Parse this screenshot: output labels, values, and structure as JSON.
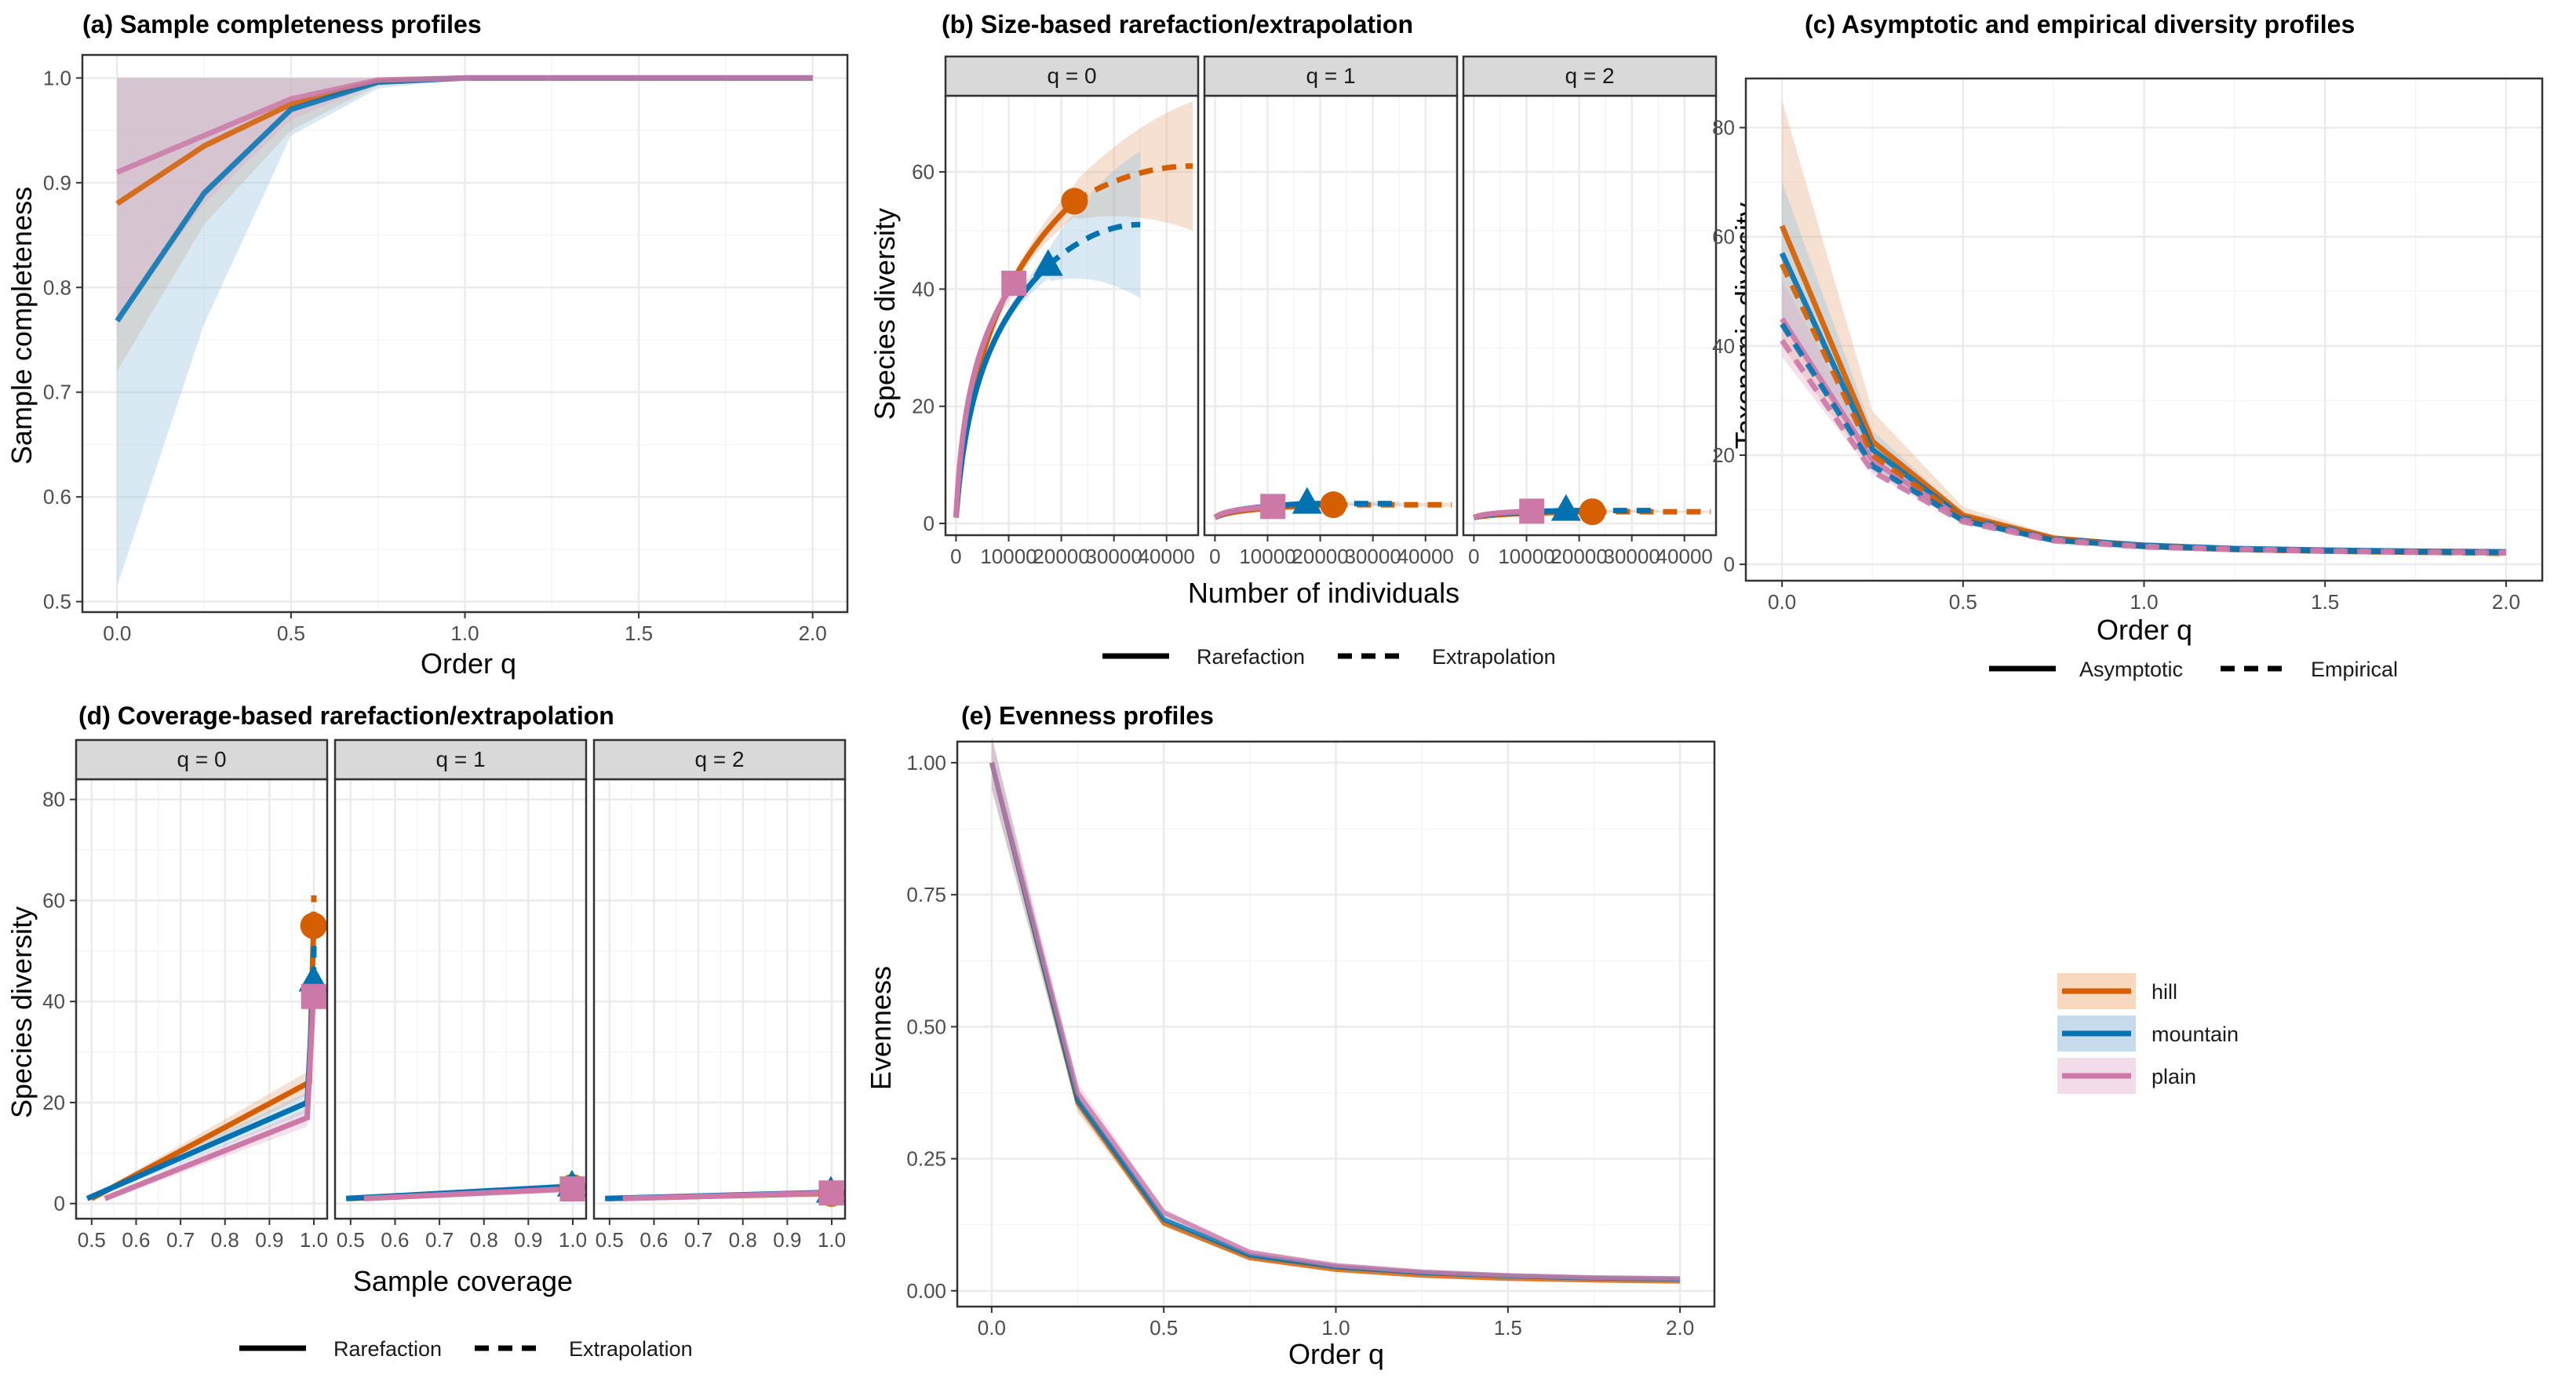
{
  "colors": {
    "hill": "#d55e00",
    "mountain": "#0072b2",
    "plain": "#cc79a7",
    "title": "#1a1adc",
    "grid_major": "#ebebeb",
    "grid_minor": "#f5f5f5",
    "strip_bg": "#d9d9d9"
  },
  "legend": {
    "items": [
      {
        "name": "hill",
        "label": "hill"
      },
      {
        "name": "mountain",
        "label": "mountain"
      },
      {
        "name": "plain",
        "label": "plain"
      }
    ],
    "placement": "bottom-right"
  },
  "chart_data": [
    {
      "id": "a",
      "type": "line",
      "title": "(a) Sample completeness profiles",
      "xlabel": "Order q",
      "ylabel": "Sample completeness",
      "xlim": [
        -0.1,
        2.1
      ],
      "ylim": [
        0.49,
        1.022
      ],
      "xticks": [
        0,
        0.5,
        1,
        1.5,
        2
      ],
      "xtick_labels": [
        "0.0",
        "0.5",
        "1.0",
        "1.5",
        "2.0"
      ],
      "yticks": [
        0.5,
        0.6,
        0.7,
        0.8,
        0.9,
        1.0
      ],
      "ytick_labels": [
        "0.5",
        "0.6",
        "0.7",
        "0.8",
        "0.9",
        "1.0"
      ],
      "grid": true,
      "x": [
        0,
        0.25,
        0.5,
        0.75,
        1,
        1.25,
        1.5,
        1.75,
        2
      ],
      "series": [
        {
          "name": "hill",
          "values": [
            0.88,
            0.935,
            0.975,
            0.997,
            1.0,
            1.0,
            1.0,
            1.0,
            1.0
          ],
          "lower": [
            0.72,
            0.86,
            0.95,
            0.993,
            0.999,
            1.0,
            1.0,
            1.0,
            1.0
          ],
          "upper": [
            1.0,
            1.0,
            1.0,
            1.0,
            1.0,
            1.0,
            1.0,
            1.0,
            1.0
          ]
        },
        {
          "name": "mountain",
          "values": [
            0.768,
            0.89,
            0.97,
            0.996,
            1.0,
            1.0,
            1.0,
            1.0,
            1.0
          ],
          "lower": [
            0.515,
            0.765,
            0.945,
            0.99,
            0.999,
            1.0,
            1.0,
            1.0,
            1.0
          ],
          "upper": [
            1.0,
            1.0,
            1.0,
            1.0,
            1.0,
            1.0,
            1.0,
            1.0,
            1.0
          ]
        },
        {
          "name": "plain",
          "values": [
            0.91,
            0.945,
            0.98,
            0.998,
            1.0,
            1.0,
            1.0,
            1.0,
            1.0
          ],
          "lower": [
            0.77,
            0.88,
            0.96,
            0.995,
            0.999,
            1.0,
            1.0,
            1.0,
            1.0
          ],
          "upper": [
            1.0,
            1.0,
            1.0,
            1.0,
            1.0,
            1.0,
            1.0,
            1.0,
            1.0
          ]
        }
      ]
    },
    {
      "id": "b",
      "type": "line",
      "title": "(b) Size-based rarefaction/extrapolation",
      "xlabel": "Number of individuals",
      "ylabel": "Species diversity",
      "xlim": [
        -2000,
        46000
      ],
      "ylim": [
        -2,
        73
      ],
      "xticks": [
        0,
        10000,
        20000,
        30000,
        40000
      ],
      "xtick_labels": [
        "0",
        "10000",
        "20000",
        "30000",
        "40000"
      ],
      "yticks": [
        0,
        20,
        40,
        60
      ],
      "ytick_labels": [
        "0",
        "20",
        "40",
        "60"
      ],
      "grid": true,
      "line_types": {
        "solid": "Rarefaction",
        "dashed": "Extrapolation"
      },
      "facets": [
        {
          "label": "q = 0",
          "series": [
            {
              "name": "hill",
              "observed_n": 22500,
              "observed": 55,
              "max_n": 45000,
              "end": 61,
              "lo_end": 53,
              "hi_end": 69
            },
            {
              "name": "mountain",
              "observed_n": 17500,
              "observed": 44,
              "max_n": 35000,
              "end": 51,
              "lo_end": 41,
              "hi_end": 61
            },
            {
              "name": "plain",
              "observed_n": 11000,
              "observed": 41,
              "max_n": 11000,
              "end": 41,
              "lo_end": 38,
              "hi_end": 44
            }
          ]
        },
        {
          "label": "q = 1",
          "series": [
            {
              "name": "hill",
              "observed_n": 22500,
              "observed": 3.2,
              "max_n": 45000,
              "end": 3.2,
              "lo_end": 3.0,
              "hi_end": 3.4
            },
            {
              "name": "mountain",
              "observed_n": 17500,
              "observed": 3.4,
              "max_n": 35000,
              "end": 3.4,
              "lo_end": 3.2,
              "hi_end": 3.6
            },
            {
              "name": "plain",
              "observed_n": 11000,
              "observed": 2.9,
              "max_n": 11000,
              "end": 2.9,
              "lo_end": 2.7,
              "hi_end": 3.1
            }
          ]
        },
        {
          "label": "q = 2",
          "series": [
            {
              "name": "hill",
              "observed_n": 22500,
              "observed": 2.0,
              "max_n": 45000,
              "end": 2.0,
              "lo_end": 1.9,
              "hi_end": 2.1
            },
            {
              "name": "mountain",
              "observed_n": 17500,
              "observed": 2.2,
              "max_n": 35000,
              "end": 2.2,
              "lo_end": 2.1,
              "hi_end": 2.3
            },
            {
              "name": "plain",
              "observed_n": 11000,
              "observed": 2.1,
              "max_n": 11000,
              "end": 2.1,
              "lo_end": 2.0,
              "hi_end": 2.2
            }
          ]
        }
      ]
    },
    {
      "id": "c",
      "type": "line",
      "title": "(c) Asymptotic and empirical diversity profiles",
      "xlabel": "Order q",
      "ylabel": "Taxonomic diversity",
      "xlim": [
        -0.1,
        2.1
      ],
      "ylim": [
        -3,
        89
      ],
      "xticks": [
        0,
        0.5,
        1,
        1.5,
        2
      ],
      "xtick_labels": [
        "0.0",
        "0.5",
        "1.0",
        "1.5",
        "2.0"
      ],
      "yticks": [
        0,
        20,
        40,
        60,
        80
      ],
      "ytick_labels": [
        "0",
        "20",
        "40",
        "60",
        "80"
      ],
      "grid": true,
      "line_types": {
        "solid": "Asymptotic",
        "dashed": "Empirical"
      },
      "x": [
        0,
        0.25,
        0.5,
        0.75,
        1,
        1.25,
        1.5,
        1.75,
        2
      ],
      "series": [
        {
          "name": "hill",
          "style": "asymptotic",
          "values": [
            62,
            22.5,
            9,
            4.8,
            3.4,
            2.8,
            2.5,
            2.3,
            2.2
          ],
          "lower": [
            40,
            17,
            7.5,
            4.3,
            3.2,
            2.7,
            2.4,
            2.2,
            2.1
          ],
          "upper": [
            85,
            28,
            10.5,
            5.3,
            3.6,
            2.9,
            2.6,
            2.4,
            2.3
          ]
        },
        {
          "name": "mountain",
          "style": "asymptotic",
          "values": [
            57,
            21,
            8.5,
            4.6,
            3.5,
            2.9,
            2.6,
            2.4,
            2.3
          ],
          "lower": [
            44,
            17.5,
            7.6,
            4.2,
            3.3,
            2.8,
            2.5,
            2.3,
            2.2
          ],
          "upper": [
            70,
            24.5,
            9.4,
            5.0,
            3.7,
            3.0,
            2.7,
            2.5,
            2.4
          ]
        },
        {
          "name": "plain",
          "style": "asymptotic",
          "values": [
            45,
            19,
            8.2,
            4.5,
            3.3,
            2.8,
            2.5,
            2.3,
            2.2
          ],
          "lower": [
            38,
            16.5,
            7.5,
            4.2,
            3.1,
            2.7,
            2.4,
            2.2,
            2.1
          ],
          "upper": [
            52,
            21.5,
            8.9,
            4.8,
            3.5,
            2.9,
            2.6,
            2.4,
            2.3
          ]
        },
        {
          "name": "hill",
          "style": "empirical",
          "values": [
            55,
            20,
            8.5,
            4.6,
            3.3,
            2.7,
            2.4,
            2.2,
            2.0
          ]
        },
        {
          "name": "mountain",
          "style": "empirical",
          "values": [
            44,
            18,
            8.0,
            4.4,
            3.3,
            2.8,
            2.5,
            2.3,
            2.2
          ]
        },
        {
          "name": "plain",
          "style": "empirical",
          "values": [
            41,
            17,
            7.8,
            4.3,
            3.2,
            2.7,
            2.4,
            2.2,
            2.1
          ]
        }
      ]
    },
    {
      "id": "d",
      "type": "line",
      "title": "(d) Coverage-based rarefaction/extrapolation",
      "xlabel": "Sample coverage",
      "ylabel": "Species diversity",
      "xlim": [
        0.465,
        1.03
      ],
      "ylim": [
        -3,
        84
      ],
      "xticks": [
        0.5,
        0.6,
        0.7,
        0.8,
        0.9,
        1.0
      ],
      "xtick_labels": [
        "0.5",
        "0.6",
        "0.7",
        "0.8",
        "0.9",
        "1.0"
      ],
      "yticks": [
        0,
        20,
        40,
        60,
        80
      ],
      "ytick_labels": [
        "0",
        "20",
        "40",
        "60",
        "80"
      ],
      "grid": true,
      "line_types": {
        "solid": "Rarefaction",
        "dashed": "Extrapolation"
      },
      "facets": [
        {
          "label": "q = 0",
          "series": [
            {
              "name": "hill",
              "points": [
                [
                  0.5,
                  1
                ],
                [
                  0.99,
                  24
                ],
                [
                  0.9994,
                  55
                ],
                [
                  1.0,
                  61
                ]
              ],
              "observed": [
                0.9994,
                55
              ]
            },
            {
              "name": "mountain",
              "points": [
                [
                  0.49,
                  1
                ],
                [
                  0.985,
                  20
                ],
                [
                  0.9992,
                  44
                ],
                [
                  1.0,
                  51
                ]
              ],
              "observed": [
                0.9992,
                44
              ]
            },
            {
              "name": "plain",
              "points": [
                [
                  0.53,
                  1
                ],
                [
                  0.985,
                  17
                ],
                [
                  0.999,
                  41
                ],
                [
                  0.9995,
                  41
                ]
              ],
              "observed": [
                0.9995,
                41
              ]
            }
          ]
        },
        {
          "label": "q = 1",
          "series": [
            {
              "name": "hill",
              "points": [
                [
                  0.5,
                  1
                ],
                [
                  0.999,
                  3.2
                ],
                [
                  1.0,
                  3.2
                ]
              ],
              "observed": [
                0.999,
                3.2
              ]
            },
            {
              "name": "mountain",
              "points": [
                [
                  0.49,
                  1
                ],
                [
                  0.998,
                  3.4
                ],
                [
                  1.0,
                  3.4
                ]
              ],
              "observed": [
                0.998,
                3.4
              ]
            },
            {
              "name": "plain",
              "points": [
                [
                  0.53,
                  1
                ],
                [
                  0.997,
                  2.9
                ],
                [
                  0.999,
                  2.9
                ]
              ],
              "observed": [
                0.999,
                2.9
              ]
            }
          ]
        },
        {
          "label": "q = 2",
          "series": [
            {
              "name": "hill",
              "points": [
                [
                  0.5,
                  1
                ],
                [
                  0.999,
                  2.0
                ],
                [
                  1.0,
                  2.0
                ]
              ],
              "observed": [
                0.999,
                2.0
              ]
            },
            {
              "name": "mountain",
              "points": [
                [
                  0.49,
                  1
                ],
                [
                  0.998,
                  2.2
                ],
                [
                  1.0,
                  2.2
                ]
              ],
              "observed": [
                0.998,
                2.2
              ]
            },
            {
              "name": "plain",
              "points": [
                [
                  0.53,
                  1
                ],
                [
                  0.997,
                  2.1
                ],
                [
                  0.999,
                  2.1
                ]
              ],
              "observed": [
                0.999,
                2.1
              ]
            }
          ]
        }
      ]
    },
    {
      "id": "e",
      "type": "line",
      "title": "(e) Evenness profiles",
      "xlabel": "Order q",
      "ylabel": "Evenness",
      "xlim": [
        -0.1,
        2.1
      ],
      "ylim": [
        -0.03,
        1.04
      ],
      "xticks": [
        0,
        0.5,
        1,
        1.5,
        2
      ],
      "xtick_labels": [
        "0.0",
        "0.5",
        "1.0",
        "1.5",
        "2.0"
      ],
      "yticks": [
        0,
        0.25,
        0.5,
        0.75,
        1.0
      ],
      "ytick_labels": [
        "0.00",
        "0.25",
        "0.50",
        "0.75",
        "1.00"
      ],
      "grid": true,
      "x": [
        0,
        0.25,
        0.5,
        0.75,
        1,
        1.25,
        1.5,
        1.75,
        2
      ],
      "series": [
        {
          "name": "hill",
          "values": [
            1.0,
            0.355,
            0.128,
            0.062,
            0.04,
            0.029,
            0.023,
            0.02,
            0.018
          ]
        },
        {
          "name": "mountain",
          "values": [
            1.0,
            0.36,
            0.135,
            0.067,
            0.045,
            0.034,
            0.028,
            0.024,
            0.022
          ]
        },
        {
          "name": "plain",
          "values": [
            1.0,
            0.375,
            0.148,
            0.073,
            0.048,
            0.036,
            0.029,
            0.025,
            0.023
          ]
        }
      ]
    }
  ]
}
